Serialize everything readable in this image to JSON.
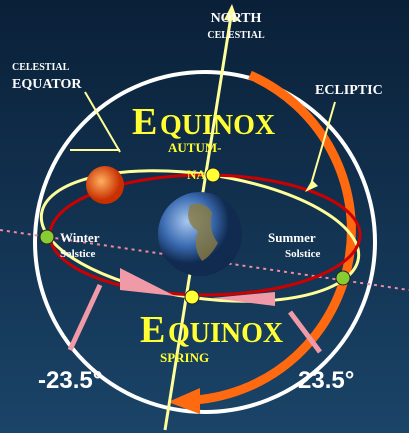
{
  "labels": {
    "north": "NORTH",
    "north_celestial": "CELESTIAL",
    "equator_top": "CELESTIAL",
    "equator": "EQUATOR",
    "ecliptic": "ECLIPTIC",
    "autumn_e": "E",
    "autumn_rest": "QUINOX",
    "autumn_sub1": "AUTUM-",
    "autumn_sub2": "NAL",
    "spring_e": "E",
    "spring_rest": "QUINOX",
    "spring_sub": "SPRING",
    "winter": "Winter",
    "winter_sub": "Solstice",
    "summer": "Summer",
    "summer_sub": "Solstice",
    "angle_left": "-23.5°",
    "angle_right": "23.5°"
  }
}
